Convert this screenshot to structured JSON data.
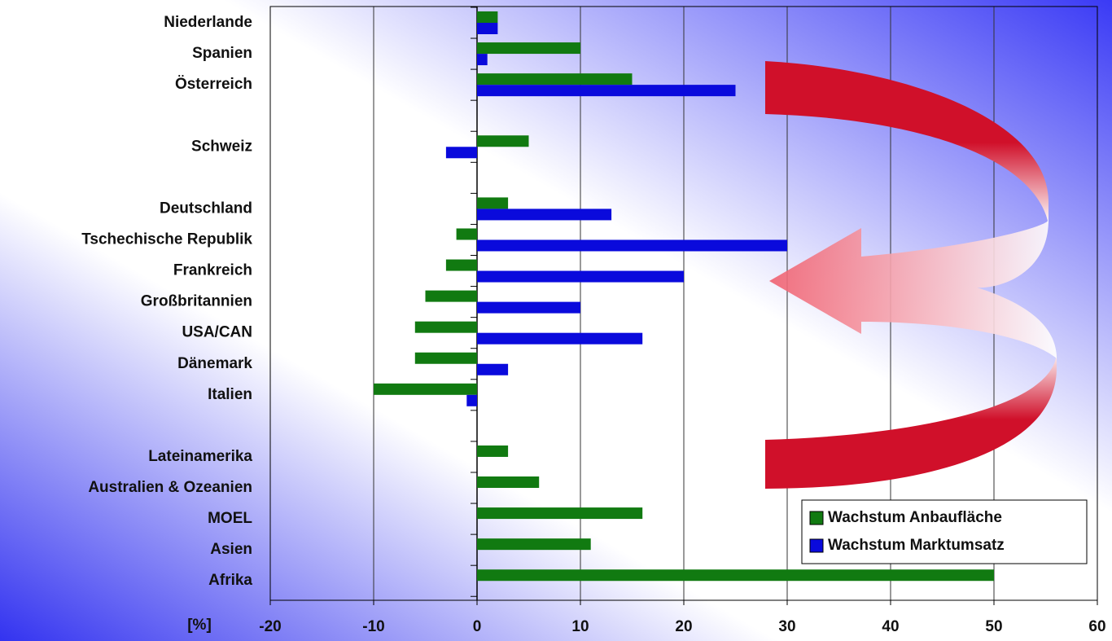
{
  "chart_data": {
    "type": "hbar",
    "x_label": "[%]",
    "categories": [
      "Niederlande",
      "Spanien",
      "Österreich",
      null,
      "Schweiz",
      null,
      "Deutschland",
      "Tschechische Republik",
      "Frankreich",
      "Großbritannien",
      "USA/CAN",
      "Dänemark",
      "Italien",
      null,
      "Lateinamerika",
      "Australien & Ozeanien",
      "MOEL",
      "Asien",
      "Afrika"
    ],
    "series": [
      {
        "name": "Wachstum Anbaufläche",
        "color": "#117a11",
        "values": [
          2,
          10,
          15,
          null,
          5,
          null,
          3,
          -2,
          -3,
          -5,
          -6,
          -6,
          -10,
          null,
          3,
          6,
          16,
          11,
          50
        ]
      },
      {
        "name": "Wachstum Marktumsatz",
        "color": "#0a0adc",
        "values": [
          2,
          1,
          25,
          null,
          -3,
          null,
          13,
          30,
          20,
          10,
          16,
          3,
          -1,
          null,
          null,
          null,
          null,
          null,
          null
        ]
      }
    ],
    "xlim": [
      -20,
      60
    ],
    "xticks": [
      -20,
      -10,
      0,
      10,
      20,
      30,
      40,
      50,
      60
    ],
    "grid": true,
    "legend": "lower right"
  }
}
